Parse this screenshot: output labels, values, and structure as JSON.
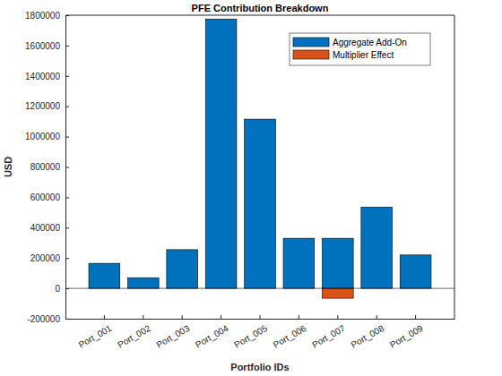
{
  "chart_data": {
    "type": "bar",
    "stacked": true,
    "title": "PFE Contribution Breakdown",
    "x_label": "Portfolio IDs",
    "y_label": "USD",
    "categories": [
      "Port_001",
      "Port_002",
      "Port_003",
      "Port_004",
      "Port_005",
      "Port_006",
      "Port_007",
      "Port_008",
      "Port_009"
    ],
    "series": [
      {
        "name": "Aggregate Add-On",
        "color": "#0072bd",
        "values": [
          165000,
          70000,
          255000,
          1775000,
          1115000,
          330000,
          330000,
          535000,
          220000
        ]
      },
      {
        "name": "Multiplier Effect",
        "color": "#d95319",
        "values": [
          0,
          0,
          0,
          0,
          0,
          0,
          -65000,
          0,
          0
        ]
      }
    ],
    "ylim": [
      -200000,
      1800000
    ],
    "yticks": [
      -200000,
      0,
      200000,
      400000,
      600000,
      800000,
      1000000,
      1200000,
      1400000,
      1600000,
      1800000
    ],
    "legend": "northeast"
  }
}
